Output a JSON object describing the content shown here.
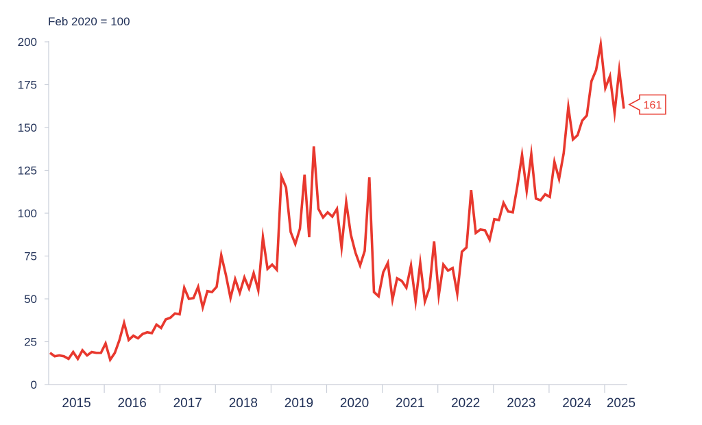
{
  "chart_data": {
    "type": "line",
    "unit_label": "Feb 2020 = 100",
    "y_ticks": [
      "0",
      "25",
      "50",
      "75",
      "100",
      "125",
      "150",
      "175",
      "200"
    ],
    "ylim": [
      0,
      200
    ],
    "x_ticks": [
      "2015",
      "2016",
      "2017",
      "2018",
      "2019",
      "2020",
      "2021",
      "2022",
      "2023",
      "2024",
      "2025"
    ],
    "x_start": "2015-01",
    "grid": false,
    "end_label": "161",
    "colors": {
      "line": "#e8382e",
      "axis": "#c9ced8",
      "text": "#1f2f56"
    },
    "series": [
      {
        "values": [
          18.5,
          16.5,
          17,
          16.5,
          15,
          19,
          15,
          20,
          17,
          19,
          18.5,
          18.5,
          24,
          14.5,
          18.5,
          26,
          36,
          26,
          28.5,
          27,
          29.5,
          30.5,
          30,
          35,
          33,
          38,
          39,
          41.5,
          41,
          56.5,
          50,
          50.5,
          57,
          45,
          54.5,
          54,
          57,
          75.5,
          64,
          50.5,
          61.5,
          53.5,
          62.5,
          56,
          65,
          55,
          86,
          67.5,
          70,
          67,
          121.5,
          115,
          89,
          82,
          91,
          122.5,
          86,
          139,
          102.5,
          97.5,
          100.5,
          98,
          102.5,
          80,
          106.5,
          87.5,
          77,
          69.5,
          78,
          121,
          54,
          51.5,
          65.5,
          71,
          49.5,
          62,
          60.5,
          56.5,
          69.5,
          48.5,
          71,
          48.5,
          56.5,
          83.5,
          52,
          70,
          66.5,
          68,
          53,
          77.5,
          80,
          113.5,
          88.5,
          90.5,
          90,
          84.5,
          96.5,
          96,
          106,
          101,
          100.5,
          116,
          134,
          113,
          134.5,
          108.5,
          107.5,
          111,
          109.5,
          130,
          120,
          135,
          162,
          143,
          145.5,
          154,
          157,
          177,
          183.5,
          198.5,
          173,
          180,
          158.5,
          183.5,
          161
        ]
      }
    ]
  }
}
